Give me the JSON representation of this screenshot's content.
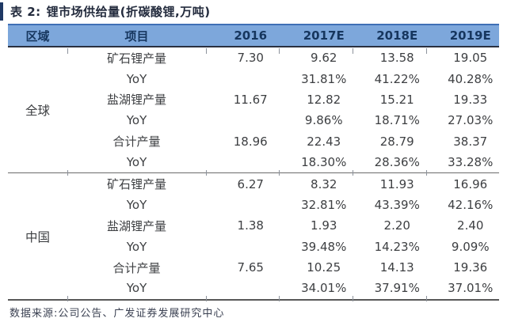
{
  "title": {
    "prefix": "表 2:",
    "text": "锂市场供给量(折碳酸锂,万吨)"
  },
  "colors": {
    "accent": "#1f3864",
    "header_bg": "#7da7db",
    "header_text": "#16365e",
    "body_text": "#3d3f42",
    "rule": "#585858"
  },
  "table": {
    "columns": [
      "区域",
      "项目",
      "2016",
      "2017E",
      "2018E",
      "2019E"
    ],
    "sections": [
      {
        "region": "全球",
        "rows": [
          {
            "item": "矿石锂产量",
            "values": [
              "7.30",
              "9.62",
              "13.58",
              "19.05"
            ]
          },
          {
            "item": "YoY",
            "values": [
              "",
              "31.81%",
              "41.22%",
              "40.28%"
            ]
          },
          {
            "item": "盐湖锂产量",
            "values": [
              "11.67",
              "12.82",
              "15.21",
              "19.33"
            ]
          },
          {
            "item": "YoY",
            "values": [
              "",
              "9.86%",
              "18.71%",
              "27.03%"
            ]
          },
          {
            "item": "合计产量",
            "values": [
              "18.96",
              "22.43",
              "28.79",
              "38.37"
            ]
          },
          {
            "item": "YoY",
            "values": [
              "",
              "18.30%",
              "28.36%",
              "33.28%"
            ]
          }
        ]
      },
      {
        "region": "中国",
        "rows": [
          {
            "item": "矿石锂产量",
            "values": [
              "6.27",
              "8.32",
              "11.93",
              "16.96"
            ]
          },
          {
            "item": "YoY",
            "values": [
              "",
              "32.81%",
              "43.39%",
              "42.16%"
            ]
          },
          {
            "item": "盐湖锂产量",
            "values": [
              "1.38",
              "1.93",
              "2.20",
              "2.40"
            ]
          },
          {
            "item": "YoY",
            "values": [
              "",
              "39.48%",
              "14.23%",
              "9.09%"
            ]
          },
          {
            "item": "合计产量",
            "values": [
              "7.65",
              "10.25",
              "14.13",
              "19.36"
            ]
          },
          {
            "item": "YoY",
            "values": [
              "",
              "34.01%",
              "37.91%",
              "37.01%"
            ]
          }
        ]
      }
    ]
  },
  "source": {
    "label": "数据来源:",
    "text": "公司公告、广发证券发展研究中心"
  }
}
